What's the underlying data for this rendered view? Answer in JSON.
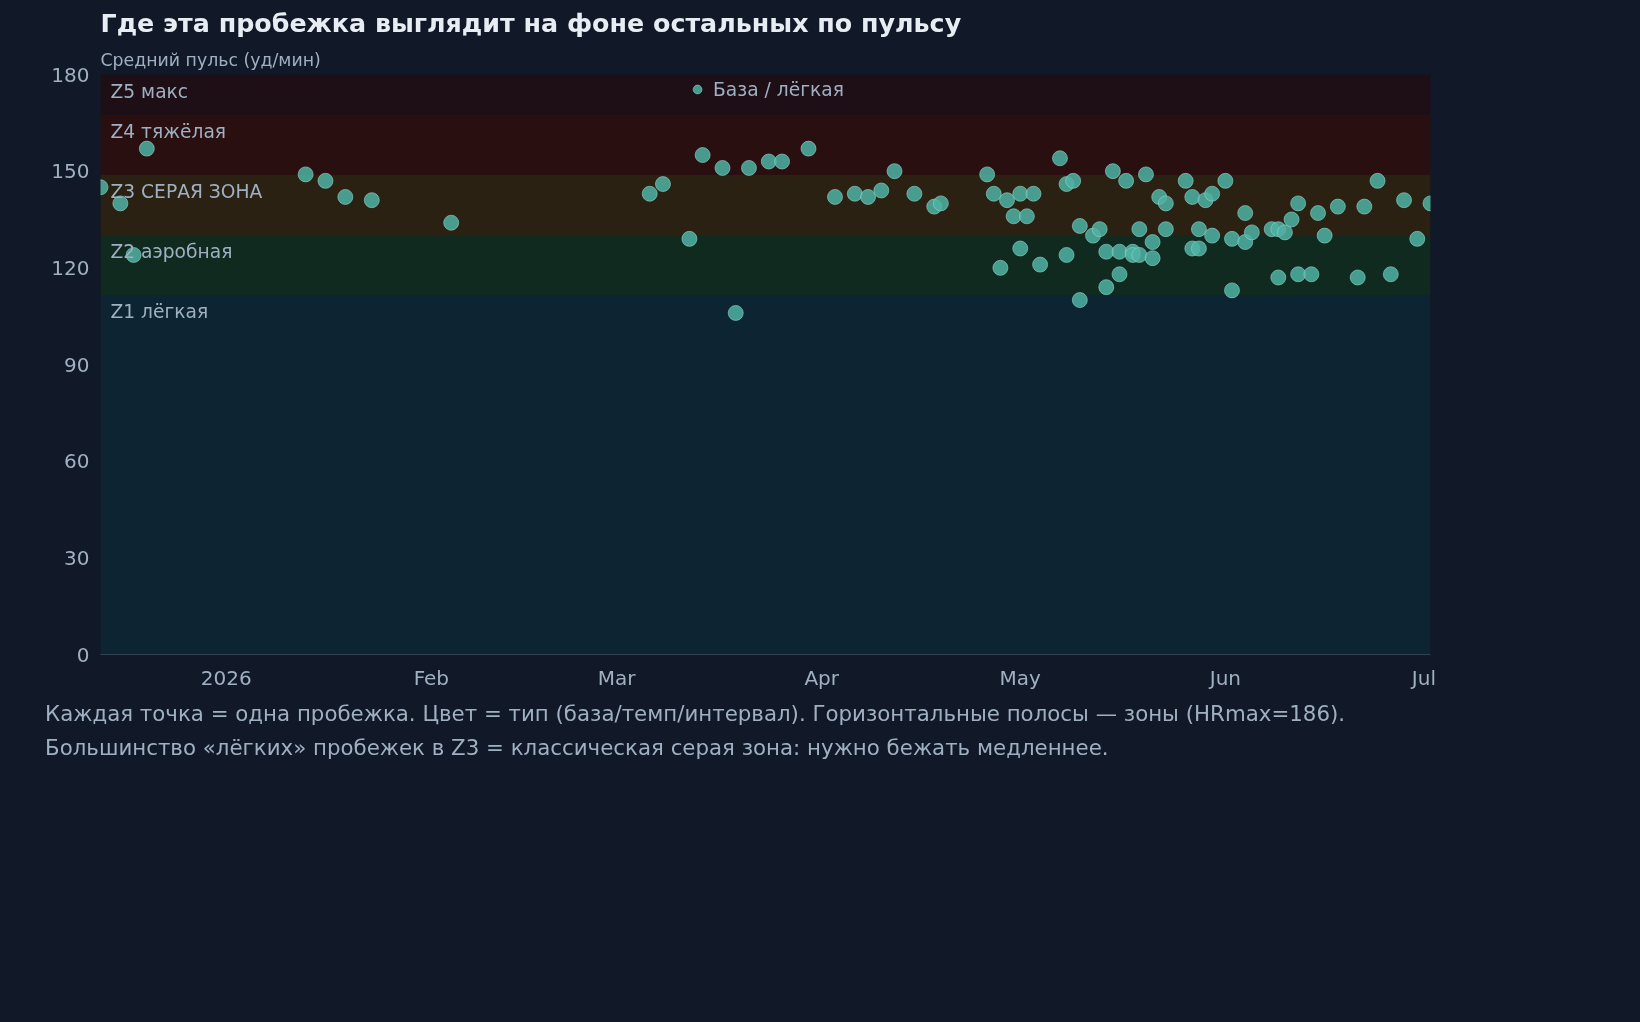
{
  "chart_data": {
    "type": "scatter",
    "title": "Где эта пробежка выглядит на фоне остальных по пульсу",
    "ylabel": "Средний пульс (уд/мин)",
    "annotations": [
      "Каждая точка = одна пробежка. Цвет = тип (база/темп/интервал). Горизонтальные полосы — зоны (HRmax=186). Большинство «лёгких» пробежек в Z3 = классическая серая зона: нужно бежать медленнее."
    ],
    "xlim": [
      "2025-12-13",
      "2026-07-02"
    ],
    "xticks": [
      {
        "value": "2026-01-01",
        "label": "2026"
      },
      {
        "value": "2026-02-01",
        "label": "Feb"
      },
      {
        "value": "2026-03-01",
        "label": "Mar"
      },
      {
        "value": "2026-04-01",
        "label": "Apr"
      },
      {
        "value": "2026-05-01",
        "label": "May"
      },
      {
        "value": "2026-06-01",
        "label": "Jun"
      },
      {
        "value": "2026-07-01",
        "label": "Jul"
      }
    ],
    "ylim": [
      0,
      180
    ],
    "yticks": [
      0,
      30,
      60,
      90,
      120,
      150,
      180
    ],
    "bands": [
      {
        "axis": "y",
        "from": 0,
        "to": 111.6,
        "label": "Z1 лёгкая",
        "color": "#0d2433"
      },
      {
        "axis": "y",
        "from": 111.6,
        "to": 130.2,
        "label": "Z2 аэробная",
        "color": "#112a1f"
      },
      {
        "axis": "y",
        "from": 130.2,
        "to": 148.8,
        "label": "Z3 СЕРАЯ ЗОНА",
        "color": "#2a2113"
      },
      {
        "axis": "y",
        "from": 148.8,
        "to": 167.4,
        "label": "Z4 тяжёлая",
        "color": "#2a0f10"
      },
      {
        "axis": "y",
        "from": 167.4,
        "to": 180,
        "label": "Z5 макс",
        "color": "#1e0e16"
      }
    ],
    "legend": "top",
    "marker": "circle",
    "series": [
      {
        "name": "База / лёгкая",
        "color": "#4fb3a5",
        "x": [
          "2025-12-13",
          "2025-12-16",
          "2025-12-18",
          "2025-12-20",
          "2026-01-13",
          "2026-01-16",
          "2026-01-19",
          "2026-01-23",
          "2026-02-04",
          "2026-03-06",
          "2026-03-08",
          "2026-03-12",
          "2026-03-14",
          "2026-03-17",
          "2026-03-19",
          "2026-03-21",
          "2026-03-24",
          "2026-03-26",
          "2026-03-30",
          "2026-04-03",
          "2026-04-06",
          "2026-04-08",
          "2026-04-10",
          "2026-04-12",
          "2026-04-15",
          "2026-04-18",
          "2026-04-19",
          "2026-04-26",
          "2026-04-27",
          "2026-04-28",
          "2026-04-29",
          "2026-04-30",
          "2026-05-01",
          "2026-05-01",
          "2026-05-02",
          "2026-05-03",
          "2026-05-04",
          "2026-05-07",
          "2026-05-08",
          "2026-05-08",
          "2026-05-09",
          "2026-05-10",
          "2026-05-10",
          "2026-05-12",
          "2026-05-13",
          "2026-05-14",
          "2026-05-14",
          "2026-05-15",
          "2026-05-16",
          "2026-05-16",
          "2026-05-17",
          "2026-05-18",
          "2026-05-18",
          "2026-05-19",
          "2026-05-19",
          "2026-05-20",
          "2026-05-21",
          "2026-05-21",
          "2026-05-22",
          "2026-05-23",
          "2026-05-23",
          "2026-05-26",
          "2026-05-27",
          "2026-05-27",
          "2026-05-28",
          "2026-05-28",
          "2026-05-29",
          "2026-05-30",
          "2026-05-30",
          "2026-06-01",
          "2026-06-02",
          "2026-06-02",
          "2026-06-04",
          "2026-06-04",
          "2026-06-05",
          "2026-06-08",
          "2026-06-09",
          "2026-06-09",
          "2026-06-10",
          "2026-06-11",
          "2026-06-12",
          "2026-06-12",
          "2026-06-14",
          "2026-06-15",
          "2026-06-16",
          "2026-06-18",
          "2026-06-21",
          "2026-06-22",
          "2026-06-24",
          "2026-06-26",
          "2026-06-28",
          "2026-06-30",
          "2026-07-02"
        ],
        "values": [
          145,
          140,
          124,
          157,
          149,
          147,
          142,
          141,
          134,
          143,
          146,
          129,
          155,
          151,
          106,
          151,
          153,
          153,
          157,
          142,
          143,
          142,
          144,
          150,
          143,
          139,
          140,
          149,
          143,
          120,
          141,
          136,
          143,
          126,
          136,
          143,
          121,
          154,
          124,
          146,
          147,
          110,
          133,
          130,
          132,
          125,
          114,
          150,
          125,
          118,
          147,
          125,
          124,
          132,
          124,
          149,
          128,
          123,
          142,
          140,
          132,
          147,
          142,
          126,
          132,
          126,
          141,
          143,
          130,
          147,
          129,
          113,
          137,
          128,
          131,
          132,
          132,
          117,
          131,
          135,
          140,
          118,
          118,
          137,
          130,
          139,
          117,
          139,
          147,
          118,
          141,
          129,
          140
        ]
      }
    ]
  }
}
